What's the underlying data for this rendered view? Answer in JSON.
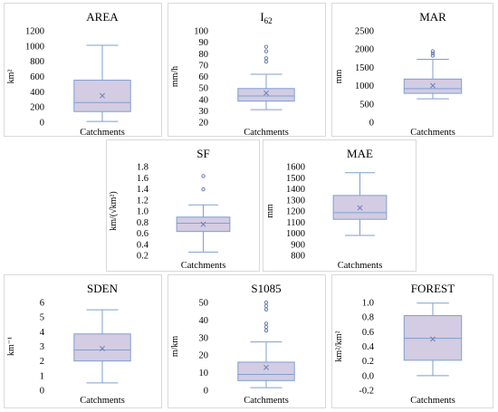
{
  "chart_data": [
    {
      "type": "box",
      "title": "AREA",
      "title_sub": "",
      "ylabel": "km²",
      "xlabel": "Catchments",
      "ylim": [
        0,
        1200
      ],
      "yticks": [
        0,
        200,
        400,
        600,
        800,
        1000,
        1200
      ],
      "box": {
        "min": 10,
        "q1": 140,
        "median": 258,
        "q3": 552,
        "max": 1010,
        "mean": 348,
        "outliers": []
      }
    },
    {
      "type": "box",
      "title": "I",
      "title_sub": "62",
      "ylabel": "mm/h",
      "xlabel": "Catchments",
      "ylim": [
        20,
        100
      ],
      "yticks": [
        20,
        30,
        40,
        50,
        60,
        70,
        80,
        90,
        100
      ],
      "box": {
        "min": 31,
        "q1": 38.5,
        "median": 43,
        "q3": 49.5,
        "max": 62,
        "mean": 45.5,
        "outliers": [
          73,
          76,
          82,
          86
        ]
      }
    },
    {
      "type": "box",
      "title": "MAR",
      "title_sub": "",
      "ylabel": "mm",
      "xlabel": "Catchments",
      "ylim": [
        0,
        2500
      ],
      "yticks": [
        0,
        500,
        1000,
        1500,
        2000,
        2500
      ],
      "box": {
        "min": 640,
        "q1": 790,
        "median": 920,
        "q3": 1180,
        "max": 1720,
        "mean": 1000,
        "outliers": [
          1820,
          1880,
          1940
        ]
      }
    },
    {
      "type": "box",
      "title": "SF",
      "title_sub": "",
      "ylabel": "km/(√km²)",
      "xlabel": "Catchments",
      "ylim": [
        0.2,
        1.8
      ],
      "yticks": [
        0.2,
        0.4,
        0.6,
        0.8,
        1.0,
        1.2,
        1.4,
        1.6,
        1.8
      ],
      "box": {
        "min": 0.26,
        "q1": 0.63,
        "median": 0.78,
        "q3": 0.89,
        "max": 1.11,
        "mean": 0.76,
        "outliers": [
          1.39,
          1.63
        ]
      }
    },
    {
      "type": "box",
      "title": "MAE",
      "title_sub": "",
      "ylabel": "mm",
      "xlabel": "Catchments",
      "ylim": [
        800,
        1600
      ],
      "yticks": [
        800,
        900,
        1000,
        1100,
        1200,
        1300,
        1400,
        1500,
        1600
      ],
      "box": {
        "min": 980,
        "q1": 1125,
        "median": 1185,
        "q3": 1340,
        "max": 1545,
        "mean": 1228,
        "outliers": []
      }
    },
    {
      "type": "box",
      "title": "SDEN",
      "title_sub": "",
      "ylabel": "km⁻¹",
      "xlabel": "Catchments",
      "ylim": [
        0,
        6
      ],
      "yticks": [
        0,
        1,
        2,
        3,
        4,
        5,
        6
      ],
      "box": {
        "min": 0.5,
        "q1": 2.0,
        "median": 2.75,
        "q3": 3.85,
        "max": 5.5,
        "mean": 2.85,
        "outliers": []
      }
    },
    {
      "type": "box",
      "title": "S1085",
      "title_sub": "",
      "ylabel": "m/km",
      "xlabel": "Catchments",
      "ylim": [
        0,
        50
      ],
      "yticks": [
        0,
        10,
        20,
        30,
        40,
        50
      ],
      "box": {
        "min": 1.5,
        "q1": 5.5,
        "median": 9,
        "q3": 16,
        "max": 27.5,
        "mean": 13,
        "outliers": [
          34,
          36,
          38,
          46,
          48,
          50
        ]
      }
    },
    {
      "type": "box",
      "title": "FOREST",
      "title_sub": "",
      "ylabel": "km²/km²",
      "xlabel": "Catchments",
      "ylim": [
        -0.2,
        1.0
      ],
      "yticks": [
        -0.2,
        0,
        0.2,
        0.4,
        0.6,
        0.8,
        1.0
      ],
      "box": {
        "min": 0.0,
        "q1": 0.21,
        "median": 0.51,
        "q3": 0.82,
        "max": 0.99,
        "mean": 0.5,
        "outliers": []
      }
    }
  ],
  "colors": {
    "box_fill": "#d3cce3",
    "box_stroke": "#7f9fce",
    "whisker": "#7f9fce",
    "mean_marker": "#6b7fb8",
    "outlier": "#6b7fb8",
    "panel_border": "#d9d9d9"
  }
}
